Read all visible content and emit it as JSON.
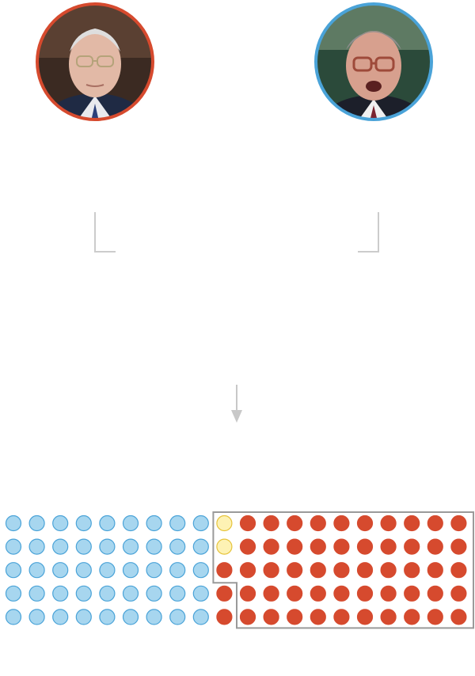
{
  "leaders": [
    {
      "id": "leader-left",
      "party_color": "#d64a2e"
    },
    {
      "id": "leader-right",
      "party_color": "#4aa3d8"
    }
  ],
  "chart_data": {
    "type": "seat-grid",
    "rows": 5,
    "columns": 20,
    "groups": [
      {
        "color": "#a7d6ef",
        "stroke": "#4aa3d8",
        "count": 45
      },
      {
        "color": "#fdf2b4",
        "stroke": "#e6c33b",
        "count": 2
      },
      {
        "color": "#d64a2e",
        "stroke": "#d64a2e",
        "count": 53
      }
    ],
    "highlighted_group": 2
  },
  "colors": {
    "bracket": "#cccccc",
    "arrow": "#c8c8c8",
    "highlight_outline": "#9a9a9a"
  }
}
